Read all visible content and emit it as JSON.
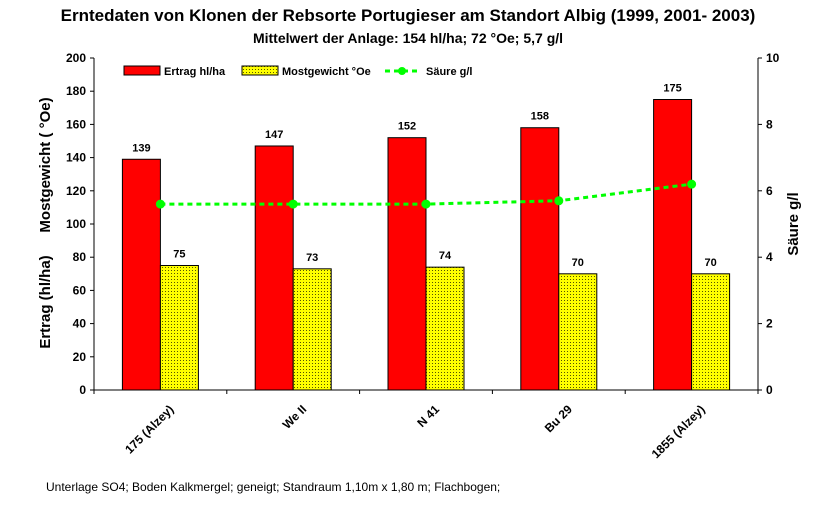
{
  "chart_data": {
    "type": "bar",
    "title": "Erntedaten von Klonen der Rebsorte  Portugieser am Standort Albig (1999, 2001- 2003)",
    "subtitle": "Mittelwert der Anlage: 154 hl/ha; 72 °Oe; 5,7 g/l",
    "ylabel_left_lines": [
      "Ertrag (hl/ha)",
      "Mostgewicht ( °Oe)"
    ],
    "ylabel_right": "Säure g/l",
    "categories": [
      "175 (Alzey)",
      "We II",
      "N 41",
      "Bu 29",
      "1855 (Alzey)"
    ],
    "ylim_left": [
      0,
      200
    ],
    "yticks_left": [
      "0",
      "20",
      "40",
      "60",
      "80",
      "100",
      "120",
      "140",
      "160",
      "180",
      "200"
    ],
    "ylim_right": [
      0,
      10
    ],
    "yticks_right": [
      "0",
      "2",
      "4",
      "6",
      "8",
      "10"
    ],
    "series": [
      {
        "name": "Ertrag hl/ha",
        "axis": "left",
        "kind": "bar",
        "color": "#ff0000",
        "values": [
          139,
          147,
          152,
          158,
          175
        ],
        "labels": [
          "139",
          "147",
          "152",
          "158",
          "175"
        ]
      },
      {
        "name": "Mostgewicht °Oe",
        "axis": "left",
        "kind": "bar",
        "color": "#ffff00",
        "values": [
          75,
          73,
          74,
          70,
          70
        ],
        "labels": [
          "75",
          "73",
          "74",
          "70",
          "70"
        ]
      },
      {
        "name": "Säure g/l",
        "axis": "right",
        "kind": "line",
        "color": "#00ff00",
        "values": [
          5.6,
          5.6,
          5.6,
          5.7,
          6.2
        ]
      }
    ],
    "footnote": "Unterlage SO4;  Boden Kalkmergel;  geneigt; Standraum 1,10m x 1,80 m; Flachbogen;",
    "legend_position": "top",
    "grid": false
  }
}
